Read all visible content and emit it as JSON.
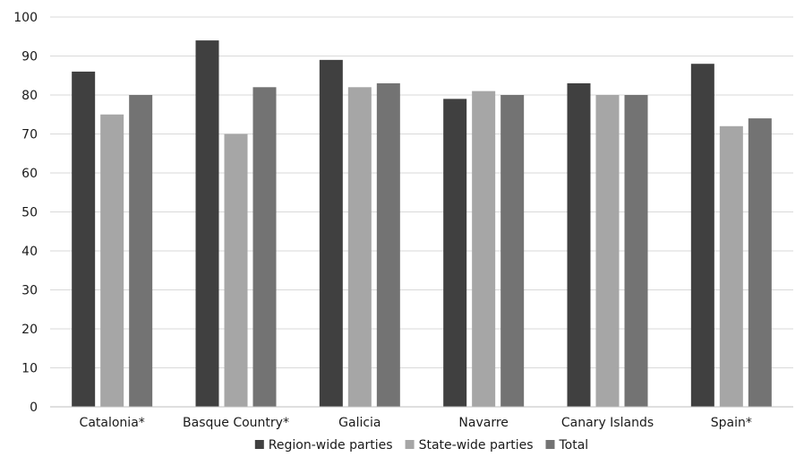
{
  "chart_data": {
    "type": "bar",
    "title": "",
    "xlabel": "",
    "ylabel": "",
    "categories": [
      "Catalonia*",
      "Basque Country*",
      "Galicia",
      "Navarre",
      "Canary Islands",
      "Spain*"
    ],
    "series": [
      {
        "name": "Region-wide parties",
        "color": "#404040",
        "values": [
          86,
          94,
          89,
          79,
          83,
          88
        ]
      },
      {
        "name": "State-wide parties",
        "color": "#a6a6a6",
        "values": [
          75,
          70,
          82,
          81,
          80,
          72
        ]
      },
      {
        "name": "Total",
        "color": "#737373",
        "values": [
          80,
          82,
          83,
          80,
          80,
          74
        ]
      }
    ],
    "ylim": [
      0,
      100
    ],
    "yticks": [
      0,
      10,
      20,
      30,
      40,
      50,
      60,
      70,
      80,
      90,
      100
    ],
    "grid": true,
    "legend_position": "bottom"
  }
}
